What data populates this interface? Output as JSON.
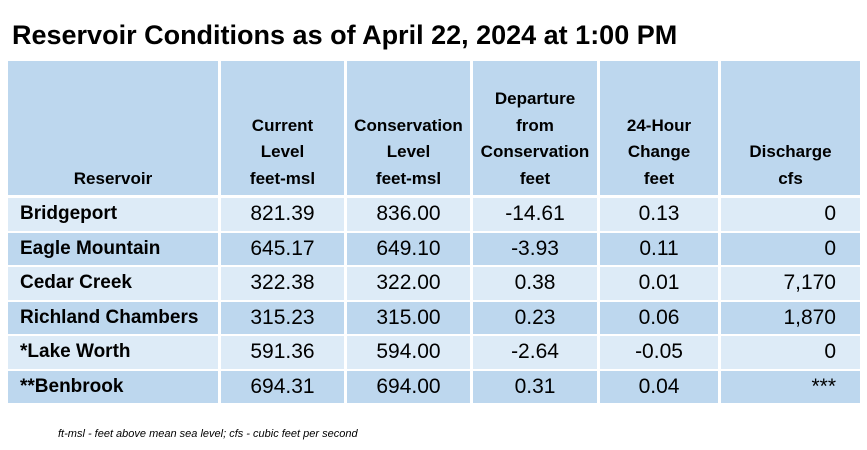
{
  "title": "Reservoir Conditions as of April 22, 2024 at 1:00 PM",
  "columns": [
    {
      "label_lines": [],
      "unit": "Reservoir"
    },
    {
      "label_lines": [
        "Current",
        "Level"
      ],
      "unit": "feet-msl"
    },
    {
      "label_lines": [
        "Conservation",
        "Level"
      ],
      "unit": "feet-msl"
    },
    {
      "label_lines": [
        "Departure",
        "from",
        "Conservation"
      ],
      "unit": "feet"
    },
    {
      "label_lines": [
        "24-Hour",
        "Change"
      ],
      "unit": "feet"
    },
    {
      "label_lines": [
        "Discharge"
      ],
      "unit": "cfs"
    }
  ],
  "rows": [
    {
      "name": "Bridgeport",
      "current": "821.39",
      "conservation": "836.00",
      "departure": "-14.61",
      "change": "0.13",
      "discharge": "0"
    },
    {
      "name": "Eagle Mountain",
      "current": "645.17",
      "conservation": "649.10",
      "departure": "-3.93",
      "change": "0.11",
      "discharge": "0"
    },
    {
      "name": "Cedar Creek",
      "current": "322.38",
      "conservation": "322.00",
      "departure": "0.38",
      "change": "0.01",
      "discharge": "7,170"
    },
    {
      "name": "Richland Chambers",
      "current": "315.23",
      "conservation": "315.00",
      "departure": "0.23",
      "change": "0.06",
      "discharge": "1,870"
    },
    {
      "name": "*Lake Worth",
      "current": "591.36",
      "conservation": "594.00",
      "departure": "-2.64",
      "change": "-0.05",
      "discharge": "0"
    },
    {
      "name": "**Benbrook",
      "current": "694.31",
      "conservation": "694.00",
      "departure": "0.31",
      "change": "0.04",
      "discharge": "***"
    }
  ],
  "footnote": "ft-msl - feet above mean sea level; cfs - cubic feet per second",
  "colors": {
    "header_bg": "#bdd7ee",
    "row_light": "#ddebf7",
    "row_dark": "#bdd7ee"
  }
}
